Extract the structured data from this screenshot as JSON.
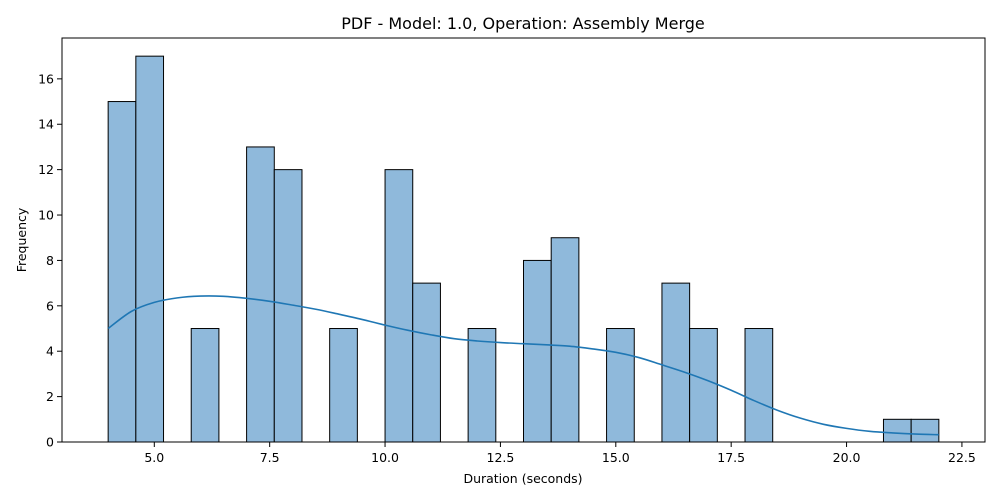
{
  "chart_data": {
    "type": "histogram",
    "title": "PDF - Model: 1.0, Operation: Assembly Merge",
    "xlabel": "Duration (seconds)",
    "ylabel": "Frequency",
    "xlim": [
      3.0,
      23.0
    ],
    "ylim": [
      0,
      17.8
    ],
    "xticks": [
      5.0,
      7.5,
      10.0,
      12.5,
      15.0,
      17.5,
      20.0,
      22.5
    ],
    "xtick_labels": [
      "5.0",
      "7.5",
      "10.0",
      "12.5",
      "15.0",
      "17.5",
      "20.0",
      "22.5"
    ],
    "yticks": [
      0,
      2,
      4,
      6,
      8,
      10,
      12,
      14,
      16
    ],
    "ytick_labels": [
      "0",
      "2",
      "4",
      "6",
      "8",
      "10",
      "12",
      "14",
      "16"
    ],
    "bin_edges": [
      4.0,
      4.6,
      5.2,
      5.8,
      6.4,
      7.0,
      7.6,
      8.2,
      8.8,
      9.4,
      10.0,
      10.6,
      11.2,
      11.8,
      12.4,
      13.0,
      13.6,
      14.2,
      14.8,
      15.4,
      16.0,
      16.6,
      17.2,
      17.8,
      18.4,
      19.0,
      19.6,
      20.2,
      20.8,
      21.4,
      22.0
    ],
    "counts": [
      15,
      17,
      0,
      5,
      0,
      13,
      12,
      0,
      5,
      0,
      12,
      7,
      0,
      5,
      0,
      8,
      9,
      0,
      5,
      0,
      7,
      5,
      0,
      5,
      0,
      0,
      0,
      0,
      1,
      1
    ],
    "kde": {
      "x": [
        4.0,
        4.5,
        5.0,
        5.5,
        6.0,
        6.5,
        7.0,
        7.5,
        8.0,
        8.5,
        9.0,
        9.5,
        10.0,
        10.5,
        11.0,
        11.5,
        12.0,
        12.5,
        13.0,
        13.5,
        14.0,
        14.5,
        15.0,
        15.5,
        16.0,
        16.5,
        17.0,
        17.5,
        18.0,
        18.5,
        19.0,
        19.5,
        20.0,
        20.5,
        21.0,
        21.5,
        22.0
      ],
      "y": [
        5.0,
        5.75,
        6.15,
        6.35,
        6.43,
        6.42,
        6.33,
        6.2,
        6.03,
        5.85,
        5.63,
        5.4,
        5.15,
        4.92,
        4.72,
        4.55,
        4.45,
        4.38,
        4.33,
        4.28,
        4.22,
        4.1,
        3.95,
        3.72,
        3.4,
        3.07,
        2.7,
        2.28,
        1.82,
        1.4,
        1.05,
        0.78,
        0.6,
        0.47,
        0.4,
        0.35,
        0.32
      ]
    },
    "bar_color": "#8fb9db",
    "bar_edge_color": "#000000",
    "kde_color": "#1f77b4",
    "grid": false
  }
}
